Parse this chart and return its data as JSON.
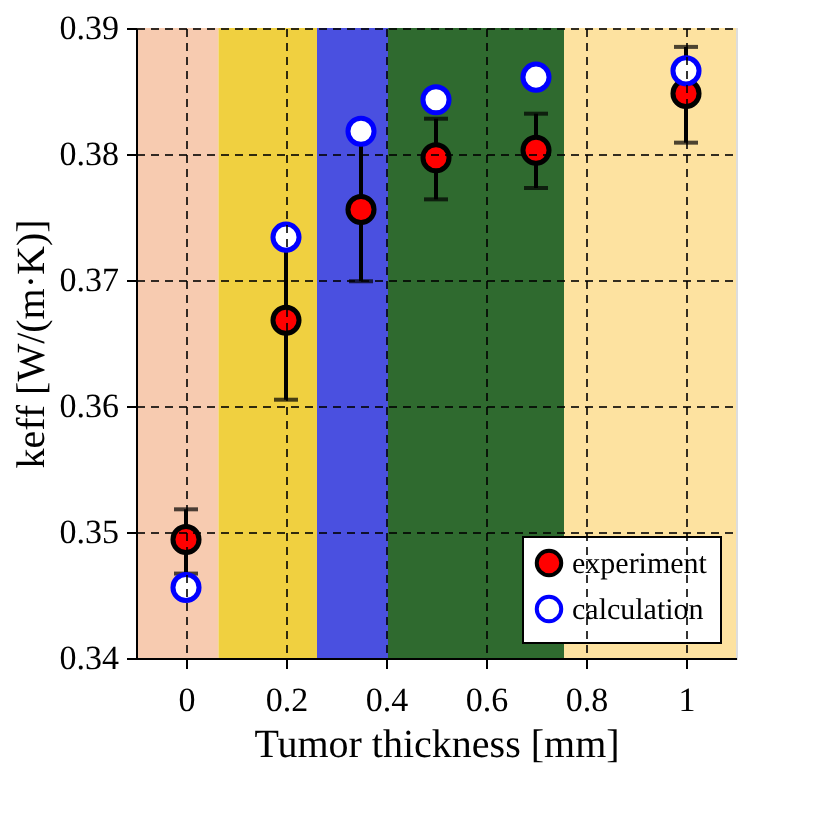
{
  "chart_data": {
    "type": "scatter",
    "xlabel": "Tumor thickness [mm]",
    "ylabel": "keff [W/(m·K)]",
    "x": [
      0,
      0.2,
      0.35,
      0.5,
      0.7,
      1
    ],
    "series": [
      {
        "name": "experiment",
        "color": "#ff0000",
        "values": [
          0.3494,
          0.3668,
          0.3756,
          0.3797,
          0.3803,
          0.3848
        ],
        "errors": [
          [
            0.3467,
            0.3518
          ],
          [
            0.3605,
            0.3731
          ],
          [
            0.3699,
            0.3813
          ],
          [
            0.3764,
            0.3828
          ],
          [
            0.3773,
            0.3832
          ],
          [
            0.3809,
            0.3885
          ]
        ]
      },
      {
        "name": "calculation",
        "color": "#0000ff",
        "values": [
          0.3456,
          0.3734,
          0.3818,
          0.3843,
          0.3861,
          0.3866
        ]
      }
    ],
    "xlim": [
      -0.1,
      1.1
    ],
    "ylim": [
      0.34,
      0.39
    ],
    "xticks": [
      0,
      0.2,
      0.4,
      0.6,
      0.8,
      1
    ],
    "yticks": [
      0.34,
      0.35,
      0.36,
      0.37,
      0.38,
      0.39
    ],
    "bands": [
      {
        "axis": "x",
        "from": -0.1,
        "to": 0.065,
        "color": "#f7cbb0"
      },
      {
        "axis": "x",
        "from": 0.065,
        "to": 0.262,
        "color": "#f0d040"
      },
      {
        "axis": "x",
        "from": 0.262,
        "to": 0.404,
        "color": "#4a50e0"
      },
      {
        "axis": "x",
        "from": 0.404,
        "to": 0.756,
        "color": "#2f6a2f"
      },
      {
        "axis": "x",
        "from": 0.756,
        "to": 1.1,
        "color": "#fde2a0"
      }
    ],
    "grid": true,
    "legend": "bottom right",
    "marker": "circle"
  }
}
